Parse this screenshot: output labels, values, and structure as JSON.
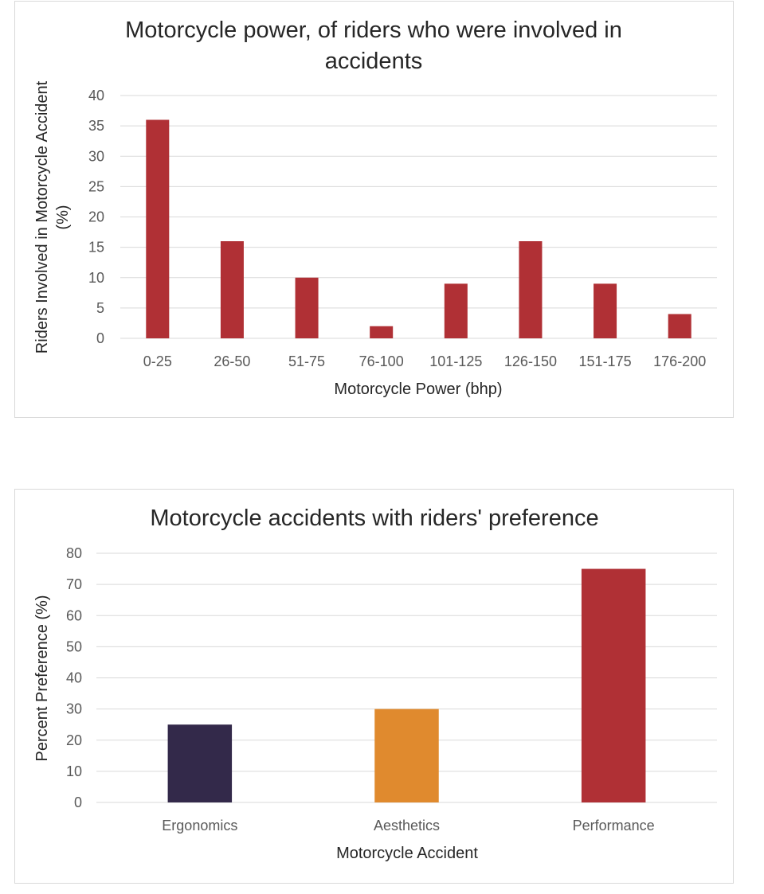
{
  "chart_data": [
    {
      "type": "bar",
      "title_lines": [
        "Motorcycle power, of riders who were involved in",
        "accidents"
      ],
      "xlabel": "Motorcycle Power (bhp)",
      "ylabel_lines": [
        "Riders Involved in Motorcycle Accident",
        "(%)"
      ],
      "categories": [
        "0-25",
        "26-50",
        "51-75",
        "76-100",
        "101-125",
        "126-150",
        "151-175",
        "176-200"
      ],
      "values": [
        36,
        16,
        10,
        2,
        9,
        16,
        9,
        4
      ],
      "ylim": [
        0,
        40
      ],
      "yticks": [
        "0",
        "5",
        "10",
        "15",
        "20",
        "25",
        "30",
        "35",
        "40"
      ],
      "grid": true,
      "colors": [
        "#b03035",
        "#b03035",
        "#b03035",
        "#b03035",
        "#b03035",
        "#b03035",
        "#b03035",
        "#b03035"
      ]
    },
    {
      "type": "bar",
      "title_lines": [
        "Motorcycle accidents with riders' preference"
      ],
      "xlabel": "Motorcycle Accident",
      "ylabel_lines": [
        "Percent Preference (%)"
      ],
      "categories": [
        "Ergonomics",
        "Aesthetics",
        "Performance"
      ],
      "values": [
        25,
        30,
        75
      ],
      "ylim": [
        0,
        80
      ],
      "yticks": [
        "0",
        "10",
        "20",
        "30",
        "40",
        "50",
        "60",
        "70",
        "80"
      ],
      "grid": true,
      "colors": [
        "#33294a",
        "#e08a2e",
        "#b03035"
      ]
    }
  ]
}
